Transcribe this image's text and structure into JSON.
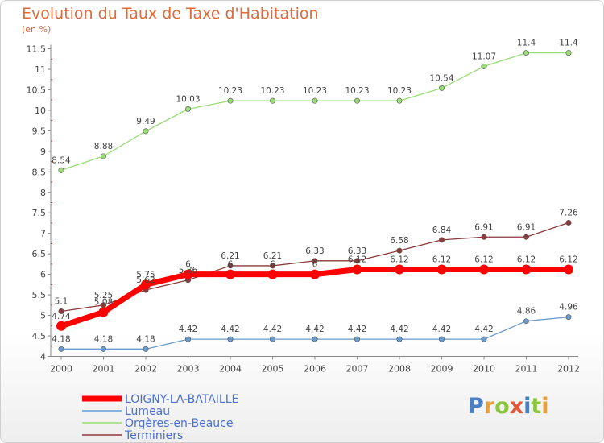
{
  "title": "Evolution du Taux de Taxe d'Habitation",
  "unit": "(en %)",
  "logo": {
    "text": "Proxiti",
    "colors": [
      "#4a7fc1",
      "#e8a03a",
      "#8cc63f",
      "#e05a3a",
      "#4a7fc1",
      "#8cc63f",
      "#e8a03a"
    ]
  },
  "chart_data": {
    "type": "line",
    "x": [
      "2000",
      "2001",
      "2002",
      "2003",
      "2004",
      "2005",
      "2006",
      "2007",
      "2008",
      "2009",
      "2010",
      "2011",
      "2012"
    ],
    "ylim": [
      4,
      11.5
    ],
    "yticks": [
      "4",
      "4.5",
      "5",
      "5.5",
      "6",
      "6.5",
      "7",
      "7.5",
      "8",
      "8.5",
      "9",
      "9.5",
      "10",
      "10.5",
      "11",
      "11.5"
    ],
    "grid": false,
    "legend_position": "bottom-left",
    "series": [
      {
        "name": "LOIGNY-LA-BATAILLE",
        "color": "#ff0000",
        "bold": true,
        "values": [
          4.74,
          5.08,
          5.75,
          6,
          6,
          6,
          6,
          6.12,
          6.12,
          6.12,
          6.12,
          6.12,
          6.12
        ],
        "labels": [
          "4.74",
          "5.08",
          "5.75",
          "6",
          "6",
          "6",
          "6",
          "6.12",
          "6.12",
          "6.12",
          "6.12",
          "6.12",
          "6.12"
        ]
      },
      {
        "name": "Lumeau",
        "color": "#6a9bcc",
        "values": [
          4.18,
          4.18,
          4.18,
          4.42,
          4.42,
          4.42,
          4.42,
          4.42,
          4.42,
          4.42,
          4.42,
          4.86,
          4.96
        ],
        "labels": [
          "4.18",
          "4.18",
          "4.18",
          "4.42",
          "4.42",
          "4.42",
          "4.42",
          "4.42",
          "4.42",
          "4.42",
          "4.42",
          "4.86",
          "4.96"
        ]
      },
      {
        "name": "Orgères-en-Beauce",
        "color": "#99dd77",
        "values": [
          8.54,
          8.88,
          9.49,
          10.03,
          10.23,
          10.23,
          10.23,
          10.23,
          10.23,
          10.54,
          11.07,
          11.4,
          11.4
        ],
        "labels": [
          "8.54",
          "8.88",
          "9.49",
          "10.03",
          "10.23",
          "10.23",
          "10.23",
          "10.23",
          "10.23",
          "10.54",
          "11.07",
          "11.4",
          "11.4"
        ]
      },
      {
        "name": "Terminiers",
        "color": "#8b3a3a",
        "values": [
          5.1,
          5.25,
          5.62,
          5.86,
          6.21,
          6.21,
          6.33,
          6.33,
          6.58,
          6.84,
          6.91,
          6.91,
          7.26
        ],
        "labels": [
          "5.1",
          "5.25",
          "5.62",
          "5.86",
          "6.21",
          "6.21",
          "6.33",
          "6.33",
          "6.58",
          "6.84",
          "6.91",
          "6.91",
          "7.26"
        ]
      }
    ]
  }
}
